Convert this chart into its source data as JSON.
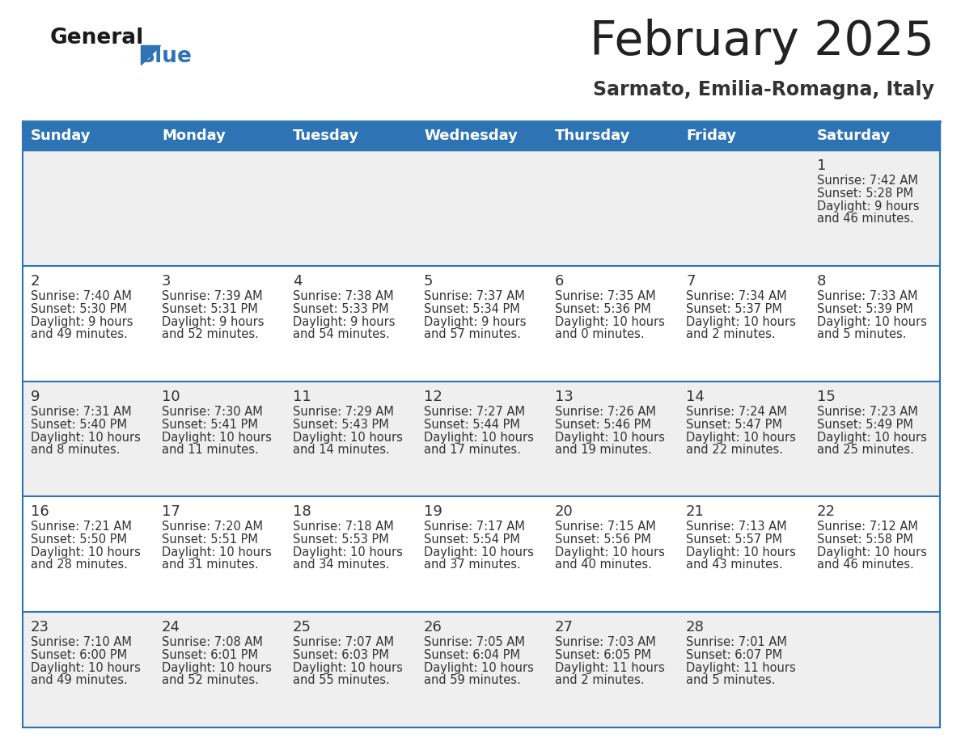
{
  "title": "February 2025",
  "subtitle": "Sarmato, Emilia-Romagna, Italy",
  "header_bg": "#2E74B5",
  "header_text_color": "#FFFFFF",
  "row_bg_light": "#EFEFEF",
  "row_bg_white": "#FFFFFF",
  "border_color": "#2E74B5",
  "cell_border_color": "#AAAAAA",
  "days_of_week": [
    "Sunday",
    "Monday",
    "Tuesday",
    "Wednesday",
    "Thursday",
    "Friday",
    "Saturday"
  ],
  "title_color": "#222222",
  "subtitle_color": "#333333",
  "text_color": "#333333",
  "day_num_color": "#333333",
  "calendar": [
    [
      {
        "day": "",
        "sunrise": "",
        "sunset": "",
        "daylight": ""
      },
      {
        "day": "",
        "sunrise": "",
        "sunset": "",
        "daylight": ""
      },
      {
        "day": "",
        "sunrise": "",
        "sunset": "",
        "daylight": ""
      },
      {
        "day": "",
        "sunrise": "",
        "sunset": "",
        "daylight": ""
      },
      {
        "day": "",
        "sunrise": "",
        "sunset": "",
        "daylight": ""
      },
      {
        "day": "",
        "sunrise": "",
        "sunset": "",
        "daylight": ""
      },
      {
        "day": "1",
        "sunrise": "7:42 AM",
        "sunset": "5:28 PM",
        "daylight": "9 hours and 46 minutes."
      }
    ],
    [
      {
        "day": "2",
        "sunrise": "7:40 AM",
        "sunset": "5:30 PM",
        "daylight": "9 hours and 49 minutes."
      },
      {
        "day": "3",
        "sunrise": "7:39 AM",
        "sunset": "5:31 PM",
        "daylight": "9 hours and 52 minutes."
      },
      {
        "day": "4",
        "sunrise": "7:38 AM",
        "sunset": "5:33 PM",
        "daylight": "9 hours and 54 minutes."
      },
      {
        "day": "5",
        "sunrise": "7:37 AM",
        "sunset": "5:34 PM",
        "daylight": "9 hours and 57 minutes."
      },
      {
        "day": "6",
        "sunrise": "7:35 AM",
        "sunset": "5:36 PM",
        "daylight": "10 hours and 0 minutes."
      },
      {
        "day": "7",
        "sunrise": "7:34 AM",
        "sunset": "5:37 PM",
        "daylight": "10 hours and 2 minutes."
      },
      {
        "day": "8",
        "sunrise": "7:33 AM",
        "sunset": "5:39 PM",
        "daylight": "10 hours and 5 minutes."
      }
    ],
    [
      {
        "day": "9",
        "sunrise": "7:31 AM",
        "sunset": "5:40 PM",
        "daylight": "10 hours and 8 minutes."
      },
      {
        "day": "10",
        "sunrise": "7:30 AM",
        "sunset": "5:41 PM",
        "daylight": "10 hours and 11 minutes."
      },
      {
        "day": "11",
        "sunrise": "7:29 AM",
        "sunset": "5:43 PM",
        "daylight": "10 hours and 14 minutes."
      },
      {
        "day": "12",
        "sunrise": "7:27 AM",
        "sunset": "5:44 PM",
        "daylight": "10 hours and 17 minutes."
      },
      {
        "day": "13",
        "sunrise": "7:26 AM",
        "sunset": "5:46 PM",
        "daylight": "10 hours and 19 minutes."
      },
      {
        "day": "14",
        "sunrise": "7:24 AM",
        "sunset": "5:47 PM",
        "daylight": "10 hours and 22 minutes."
      },
      {
        "day": "15",
        "sunrise": "7:23 AM",
        "sunset": "5:49 PM",
        "daylight": "10 hours and 25 minutes."
      }
    ],
    [
      {
        "day": "16",
        "sunrise": "7:21 AM",
        "sunset": "5:50 PM",
        "daylight": "10 hours and 28 minutes."
      },
      {
        "day": "17",
        "sunrise": "7:20 AM",
        "sunset": "5:51 PM",
        "daylight": "10 hours and 31 minutes."
      },
      {
        "day": "18",
        "sunrise": "7:18 AM",
        "sunset": "5:53 PM",
        "daylight": "10 hours and 34 minutes."
      },
      {
        "day": "19",
        "sunrise": "7:17 AM",
        "sunset": "5:54 PM",
        "daylight": "10 hours and 37 minutes."
      },
      {
        "day": "20",
        "sunrise": "7:15 AM",
        "sunset": "5:56 PM",
        "daylight": "10 hours and 40 minutes."
      },
      {
        "day": "21",
        "sunrise": "7:13 AM",
        "sunset": "5:57 PM",
        "daylight": "10 hours and 43 minutes."
      },
      {
        "day": "22",
        "sunrise": "7:12 AM",
        "sunset": "5:58 PM",
        "daylight": "10 hours and 46 minutes."
      }
    ],
    [
      {
        "day": "23",
        "sunrise": "7:10 AM",
        "sunset": "6:00 PM",
        "daylight": "10 hours and 49 minutes."
      },
      {
        "day": "24",
        "sunrise": "7:08 AM",
        "sunset": "6:01 PM",
        "daylight": "10 hours and 52 minutes."
      },
      {
        "day": "25",
        "sunrise": "7:07 AM",
        "sunset": "6:03 PM",
        "daylight": "10 hours and 55 minutes."
      },
      {
        "day": "26",
        "sunrise": "7:05 AM",
        "sunset": "6:04 PM",
        "daylight": "10 hours and 59 minutes."
      },
      {
        "day": "27",
        "sunrise": "7:03 AM",
        "sunset": "6:05 PM",
        "daylight": "11 hours and 2 minutes."
      },
      {
        "day": "28",
        "sunrise": "7:01 AM",
        "sunset": "6:07 PM",
        "daylight": "11 hours and 5 minutes."
      },
      {
        "day": "",
        "sunrise": "",
        "sunset": "",
        "daylight": ""
      }
    ]
  ]
}
